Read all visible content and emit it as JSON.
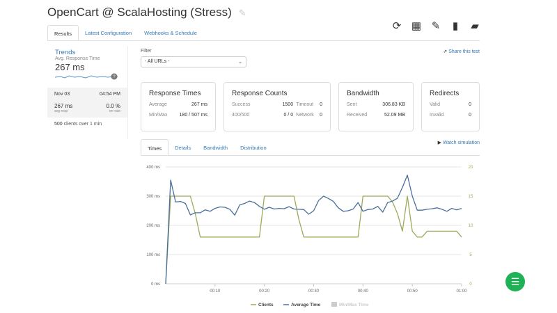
{
  "header": {
    "title": "OpenCart @ ScalaHosting (Stress)",
    "tools": [
      "refresh-icon",
      "calendar-icon",
      "edit-icon",
      "file-icon",
      "folder-open-icon"
    ]
  },
  "tabs": [
    {
      "label": "Results",
      "active": true
    },
    {
      "label": "Latest Configuration"
    },
    {
      "label": "Webhooks & Schedule"
    }
  ],
  "sidebar": {
    "trends": "Trends",
    "metric": "Avg. Response Time",
    "value": "267 ms",
    "date": "Nov 03",
    "time": "04:54 PM",
    "avg": "267 ms",
    "avg_label": "avg resp",
    "err": "0.0 %",
    "err_label": "err rate",
    "clients": "500",
    "clients_text": "clients over 1 min",
    "badge": "?"
  },
  "filter": {
    "label": "Filter",
    "value": "- All URLs -"
  },
  "share": "Share this test",
  "cards": {
    "times": {
      "title": "Response Times",
      "avg_label": "Average",
      "avg": "267 ms",
      "mm_label": "Min/Max",
      "mm": "180 / 507 ms"
    },
    "counts": {
      "title": "Response Counts",
      "success_label": "Success",
      "success": "1500",
      "timeout_label": "Timeout",
      "timeout": "0",
      "err_label": "400/500",
      "err": "0 / 0",
      "net_label": "Network",
      "net": "0"
    },
    "bandwidth": {
      "title": "Bandwidth",
      "sent_label": "Sent",
      "sent": "306.83 KB",
      "recv_label": "Received",
      "recv": "52.09 MB"
    },
    "redirects": {
      "title": "Redirects",
      "valid_label": "Valid",
      "valid": "0",
      "invalid_label": "Invalid",
      "invalid": "0"
    }
  },
  "chart_tabs": [
    {
      "label": "Times",
      "active": true
    },
    {
      "label": "Details"
    },
    {
      "label": "Bandwidth"
    },
    {
      "label": "Distribution"
    }
  ],
  "watch": "Watch simulation",
  "colors": {
    "clients": "#9aab5a",
    "avg": "#4a6f9c",
    "minmax": "#cccccc",
    "link": "#337ab7",
    "chat": "#1fb155"
  },
  "chart_data": {
    "type": "line",
    "x_ticks": [
      "00:10",
      "00:20",
      "00:30",
      "00:40",
      "00:50",
      "01:00"
    ],
    "y_left": {
      "ticks": [
        "0 ms",
        "100 ms",
        "200 ms",
        "300 ms",
        "400 ms"
      ],
      "range": [
        0,
        400
      ]
    },
    "y_right": {
      "ticks": [
        "0",
        "5",
        "10",
        "15",
        "20"
      ],
      "range": [
        0,
        20
      ]
    },
    "x_range_seconds": [
      0,
      60
    ],
    "grid": true,
    "legend": "bottom",
    "series": [
      {
        "name": "Clients",
        "axis": "right",
        "values": [
          0,
          15,
          15,
          15,
          15,
          15,
          12,
          8,
          8,
          8,
          8,
          8,
          8,
          8,
          8,
          8,
          8,
          8,
          8,
          8,
          15,
          15,
          15,
          15,
          15,
          15,
          15,
          11,
          8,
          8,
          8,
          8,
          8,
          8,
          8,
          8,
          8,
          8,
          8,
          8,
          15,
          15,
          15,
          15,
          15,
          15,
          14,
          12,
          9,
          15,
          9,
          8,
          8,
          9,
          9,
          9,
          9,
          9,
          9,
          9,
          8
        ]
      },
      {
        "name": "Average Time",
        "axis": "left",
        "values": [
          0,
          355,
          280,
          282,
          275,
          236,
          243,
          243,
          253,
          248,
          258,
          263,
          262,
          255,
          235,
          270,
          275,
          283,
          278,
          265,
          255,
          262,
          256,
          258,
          257,
          264,
          256,
          255,
          254,
          238,
          250,
          285,
          300,
          292,
          282,
          260,
          248,
          250,
          256,
          278,
          248,
          254,
          256,
          265,
          245,
          278,
          283,
          293,
          330,
          372,
          300,
          252,
          252,
          255,
          257,
          260,
          255,
          248,
          258,
          253,
          258
        ]
      },
      {
        "name": "Min/Max Time",
        "values": [],
        "hidden": true
      }
    ]
  },
  "chat_icon": "chat-icon"
}
